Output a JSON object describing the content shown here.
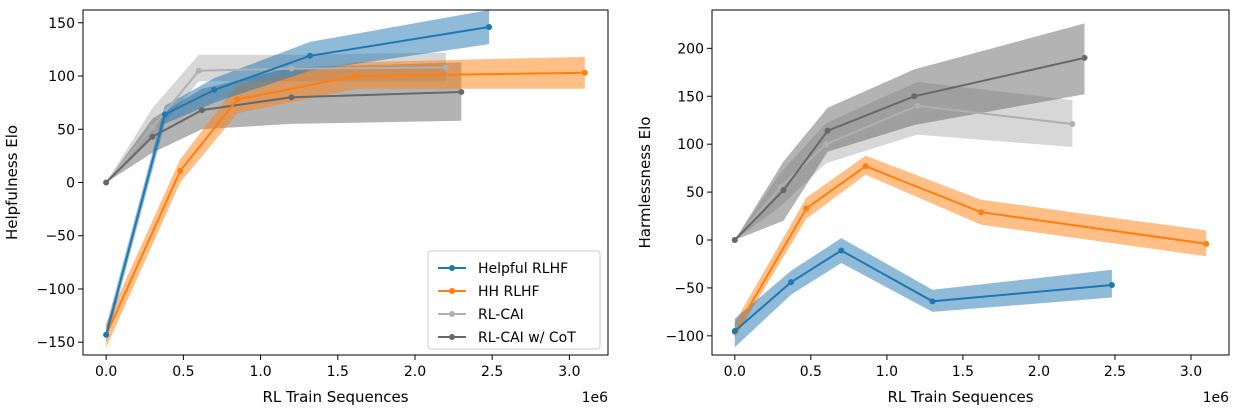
{
  "chart_data": [
    {
      "type": "line",
      "xlabel": "RL Train Sequences",
      "ylabel": "Helpfulness Elo",
      "x_multiplier_label": "1e6",
      "xlim": [
        -0.15,
        3.25
      ],
      "ylim": [
        -162,
        162
      ],
      "xticks": [
        0.0,
        0.5,
        1.0,
        1.5,
        2.0,
        2.5,
        3.0
      ],
      "xtick_labels": [
        "0.0",
        "0.5",
        "1.0",
        "1.5",
        "2.0",
        "2.5",
        "3.0"
      ],
      "yticks": [
        -150,
        -100,
        -50,
        0,
        50,
        100,
        150
      ],
      "ytick_labels": [
        "−150",
        "−100",
        "−50",
        "0",
        "50",
        "100",
        "150"
      ],
      "legend": {
        "position": "lower-right"
      },
      "series": [
        {
          "name": "RL-CAI",
          "color": "#b0b0b0",
          "x": [
            0,
            0.3,
            0.6,
            1.2,
            2.2
          ],
          "y": [
            0,
            52,
            105,
            107,
            108
          ],
          "lower": [
            0,
            42,
            95,
            95,
            95
          ],
          "upper": [
            0,
            70,
            120,
            120,
            122
          ]
        },
        {
          "name": "RL-CAI w/ CoT",
          "color": "#686868",
          "x": [
            0,
            0.3,
            0.62,
            1.2,
            2.3
          ],
          "y": [
            0,
            43,
            68,
            80,
            85
          ],
          "lower": [
            0,
            28,
            50,
            55,
            58
          ],
          "upper": [
            0,
            60,
            88,
            108,
            113
          ]
        },
        {
          "name": "HH RLHF",
          "color": "#ff7f0e",
          "x": [
            0,
            0.48,
            0.85,
            1.62,
            3.1
          ],
          "y": [
            -143,
            11,
            78,
            100,
            103
          ],
          "lower": [
            -155,
            0,
            65,
            88,
            88
          ],
          "upper": [
            -132,
            22,
            92,
            113,
            118
          ]
        },
        {
          "name": "Helpful RLHF",
          "color": "#1f77b4",
          "x": [
            0,
            0.38,
            0.7,
            1.32,
            2.48
          ],
          "y": [
            -143,
            64,
            87,
            119,
            146
          ],
          "lower": [
            -150,
            55,
            75,
            105,
            130
          ],
          "upper": [
            -135,
            72,
            98,
            132,
            162
          ]
        }
      ]
    },
    {
      "type": "line",
      "xlabel": "RL Train Sequences",
      "ylabel": "Harmlessness Elo",
      "x_multiplier_label": "1e6",
      "xlim": [
        -0.15,
        3.25
      ],
      "ylim": [
        -120,
        240
      ],
      "xticks": [
        0.0,
        0.5,
        1.0,
        1.5,
        2.0,
        2.5,
        3.0
      ],
      "xtick_labels": [
        "0.0",
        "0.5",
        "1.0",
        "1.5",
        "2.0",
        "2.5",
        "3.0"
      ],
      "yticks": [
        -100,
        -50,
        0,
        50,
        100,
        150,
        200
      ],
      "ytick_labels": [
        "−100",
        "−50",
        "0",
        "50",
        "100",
        "150",
        "200"
      ],
      "series": [
        {
          "name": "RL-CAI",
          "color": "#b0b0b0",
          "x": [
            0,
            0.3,
            0.6,
            1.2,
            2.22
          ],
          "y": [
            0,
            55,
            100,
            140,
            121
          ],
          "lower": [
            0,
            35,
            80,
            110,
            97
          ],
          "upper": [
            0,
            70,
            122,
            165,
            146
          ]
        },
        {
          "name": "RL-CAI w/ CoT",
          "color": "#686868",
          "x": [
            0,
            0.32,
            0.61,
            1.18,
            2.3
          ],
          "y": [
            0,
            52,
            114,
            150,
            190
          ],
          "lower": [
            0,
            20,
            92,
            120,
            152
          ],
          "upper": [
            0,
            82,
            138,
            178,
            226
          ]
        },
        {
          "name": "HH RLHF",
          "color": "#ff7f0e",
          "x": [
            0,
            0.47,
            0.86,
            1.62,
            3.1
          ],
          "y": [
            -96,
            33,
            77,
            29,
            -4
          ],
          "lower": [
            -102,
            22,
            68,
            16,
            -17
          ],
          "upper": [
            -86,
            44,
            88,
            42,
            10
          ]
        },
        {
          "name": "Helpful RLHF",
          "color": "#1f77b4",
          "x": [
            0,
            0.37,
            0.7,
            1.3,
            2.48
          ],
          "y": [
            -95,
            -44,
            -11,
            -64,
            -47
          ],
          "lower": [
            -112,
            -57,
            -24,
            -75,
            -60
          ],
          "upper": [
            -82,
            -32,
            2,
            -52,
            -31
          ]
        }
      ]
    }
  ]
}
